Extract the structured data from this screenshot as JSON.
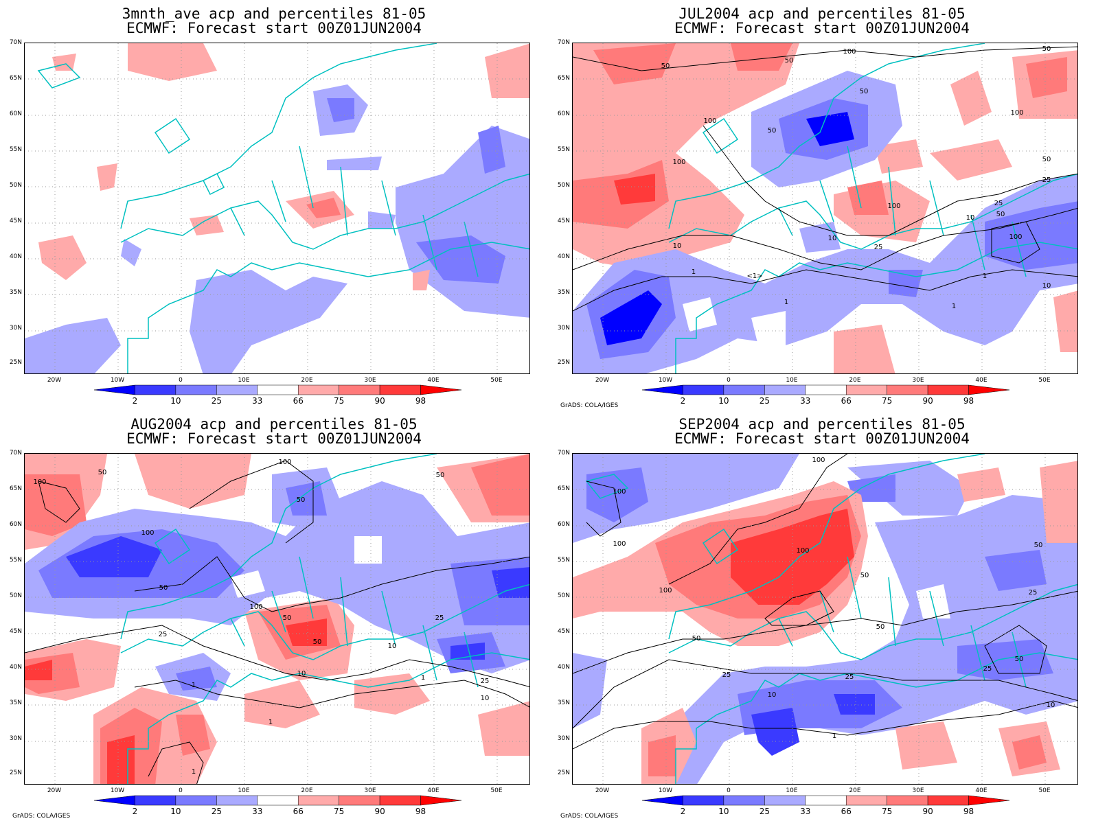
{
  "panels": [
    {
      "title_line1": "3mnth_ave acp and percentiles 81-05",
      "title_line2": "ECMWF: Forecast start 00Z01JUN2004",
      "credit": ""
    },
    {
      "title_line1": "JUL2004 acp and percentiles 81-05",
      "title_line2": "ECMWF: Forecast start 00Z01JUN2004",
      "credit": "GrADS: COLA/IGES"
    },
    {
      "title_line1": "AUG2004 acp and percentiles 81-05",
      "title_line2": "ECMWF: Forecast start 00Z01JUN2004",
      "credit": "GrADS: COLA/IGES"
    },
    {
      "title_line1": "SEP2004 acp and percentiles 81-05",
      "title_line2": "ECMWF: Forecast start 00Z01JUN2004",
      "credit": "GrADS: COLA/IGES"
    }
  ],
  "lat_labels": [
    "70N",
    "65N",
    "60N",
    "55N",
    "50N",
    "45N",
    "40N",
    "35N",
    "30N",
    "25N"
  ],
  "lon_labels": [
    "20W",
    "10W",
    "0",
    "10E",
    "20E",
    "30E",
    "40E",
    "50E"
  ],
  "colorbar": {
    "labels": [
      "2",
      "10",
      "25",
      "33",
      "66",
      "75",
      "90",
      "98"
    ],
    "colors": [
      "#0000ff",
      "#3a3aff",
      "#7a7aff",
      "#aaaaff",
      "#ffffff",
      "#ffaaaa",
      "#ff7a7a",
      "#ff3a3a",
      "#ff0000"
    ]
  },
  "contour_labels": {
    "panel2": [
      "50",
      "100",
      "50",
      "100",
      "50",
      "100",
      "50",
      "50",
      "100",
      "100",
      "25",
      "50",
      "10",
      "25",
      "1",
      "10",
      "25",
      "50",
      "100",
      "10",
      "1",
      "1",
      "<1>",
      "10",
      "1"
    ],
    "panel3": [
      "100",
      "50",
      "100",
      "50",
      "50",
      "100",
      "50",
      "100",
      "50",
      "25",
      "25",
      "10",
      "1",
      "50",
      "10",
      "1",
      "1",
      "25",
      "10",
      "1"
    ],
    "panel4": [
      "100",
      "100",
      "100",
      "100",
      "100",
      "50",
      "50",
      "50",
      "25",
      "50",
      "25",
      "10",
      "1",
      "25",
      "10",
      "50",
      "25"
    ]
  }
}
